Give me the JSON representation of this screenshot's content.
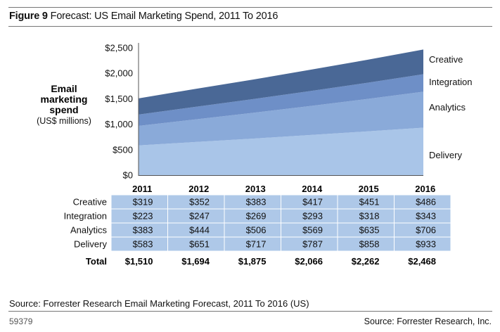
{
  "figure": {
    "label": "Figure 9",
    "title": "Forecast: US Email Marketing Spend, 2011 To 2016",
    "source": "Source: Forrester Research Email Marketing Forecast, 2011 To 2016 (US)",
    "figure_number": "59379",
    "credit": "Source: Forrester Research, Inc."
  },
  "chart_data": {
    "type": "area",
    "stacked": true,
    "title": "Forecast: US Email Marketing Spend, 2011 To 2016",
    "ylabel_lines": [
      "Email",
      "marketing",
      "spend"
    ],
    "ylabel_unit": "(US$ millions)",
    "xlabel": "",
    "categories": [
      "2011",
      "2012",
      "2013",
      "2014",
      "2015",
      "2016"
    ],
    "ylim": [
      0,
      2500
    ],
    "yticks": [
      0,
      500,
      1000,
      1500,
      2000,
      2500
    ],
    "ytick_labels": [
      "$0",
      "$500",
      "$1,000",
      "$1,500",
      "$2,000",
      "$2,500"
    ],
    "legend_placement": "right",
    "series": [
      {
        "name": "Delivery",
        "color": "#a9c5e8",
        "values": [
          583,
          651,
          717,
          787,
          858,
          933
        ],
        "labels": [
          "$583",
          "$651",
          "$717",
          "$787",
          "$858",
          "$933"
        ]
      },
      {
        "name": "Analytics",
        "color": "#8aaad9",
        "values": [
          383,
          444,
          506,
          569,
          635,
          706
        ],
        "labels": [
          "$383",
          "$444",
          "$506",
          "$569",
          "$635",
          "$706"
        ]
      },
      {
        "name": "Integration",
        "color": "#6e8fc7",
        "values": [
          223,
          247,
          269,
          293,
          318,
          343
        ],
        "labels": [
          "$223",
          "$247",
          "$269",
          "$293",
          "$318",
          "$343"
        ]
      },
      {
        "name": "Creative",
        "color": "#4a6896",
        "values": [
          319,
          352,
          383,
          417,
          451,
          486
        ],
        "labels": [
          "$319",
          "$352",
          "$383",
          "$417",
          "$451",
          "$486"
        ]
      }
    ],
    "table": {
      "row_order": [
        "Creative",
        "Integration",
        "Analytics",
        "Delivery"
      ],
      "total_label": "Total",
      "totals": [
        1510,
        1694,
        1875,
        2066,
        2262,
        2468
      ],
      "total_labels": [
        "$1,510",
        "$1,694",
        "$1,875",
        "$2,066",
        "$2,262",
        "$2,468"
      ],
      "cell_color": "#aec8e8"
    }
  }
}
